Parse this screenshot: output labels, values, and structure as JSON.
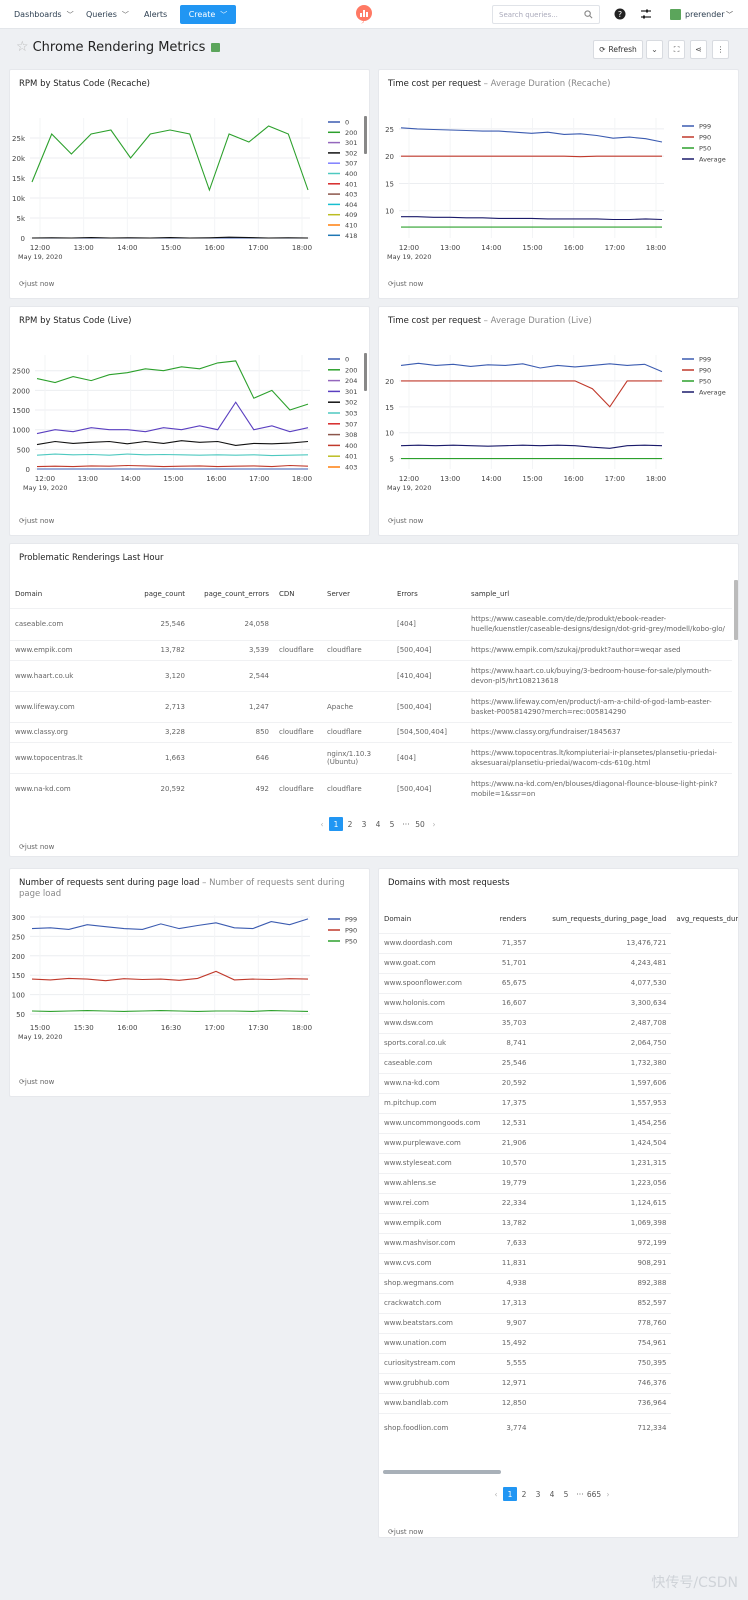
{
  "nav": {
    "dashboards": "Dashboards",
    "queries": "Queries",
    "alerts": "Alerts",
    "create": "Create",
    "search_placeholder": "Search queries...",
    "username": "prerender"
  },
  "page": {
    "title": "Chrome Rendering Metrics",
    "refresh": "Refresh"
  },
  "refreshed": "just now",
  "colors": {
    "primary": "#2196f3",
    "green": "#2ca02c",
    "red": "#c0392b",
    "blue": "#3b5bb0",
    "black": "#111111",
    "purple": "#5a3fc0",
    "teal": "#4ec9c0"
  },
  "cards": {
    "rpm_recache": {
      "title": "RPM by Status Code (Recache)"
    },
    "time_recache": {
      "title": "Time cost per request",
      "subtitle": " – Average Duration (Recache)"
    },
    "rpm_live": {
      "title": "RPM by Status Code (Live)"
    },
    "time_live": {
      "title": "Time cost per request",
      "subtitle": " – Average Duration (Live)"
    },
    "problematic": {
      "title": "Problematic Renderings Last Hour"
    },
    "requests": {
      "title": "Number of requests sent during page load",
      "subtitle": " – Number of requests sent during page load"
    },
    "domains": {
      "title": "Domains with most requests"
    }
  },
  "chart_data": [
    {
      "type": "line",
      "title": "RPM by Status Code (Recache)",
      "date_label": "May 19, 2020",
      "x_ticks": [
        "12:00",
        "13:00",
        "14:00",
        "15:00",
        "16:00",
        "17:00",
        "18:00"
      ],
      "y_ticks": [
        "0",
        "5k",
        "10k",
        "15k",
        "20k",
        "25k"
      ],
      "ylim": [
        0,
        30000
      ],
      "legend": [
        "0",
        "200",
        "301",
        "302",
        "307",
        "400",
        "401",
        "403",
        "404",
        "409",
        "410",
        "418"
      ],
      "series": [
        {
          "name": "200",
          "color": "#2ca02c",
          "values": [
            14000,
            26000,
            21000,
            26000,
            27000,
            20000,
            26000,
            27000,
            26000,
            12000,
            26000,
            24000,
            28000,
            26000,
            12000
          ]
        },
        {
          "name": "0",
          "color": "#3b5bb0",
          "values": [
            0,
            0,
            0,
            0,
            0,
            0,
            0,
            0,
            0,
            0,
            0,
            0,
            0,
            0,
            0
          ]
        },
        {
          "name": "302",
          "color": "#111111",
          "values": [
            0,
            50,
            0,
            100,
            0,
            50,
            0,
            100,
            0,
            50,
            200,
            100,
            0,
            50,
            0
          ]
        }
      ]
    },
    {
      "type": "line",
      "title": "Time cost per request – Average Duration (Recache)",
      "date_label": "May 19, 2020",
      "x_ticks": [
        "12:00",
        "13:00",
        "14:00",
        "15:00",
        "16:00",
        "17:00",
        "18:00"
      ],
      "y_ticks": [
        "10",
        "15",
        "20",
        "25"
      ],
      "ylim": [
        5,
        27
      ],
      "legend": [
        "P99",
        "P90",
        "P50",
        "Average"
      ],
      "series": [
        {
          "name": "P99",
          "color": "#3b5bb0",
          "values": [
            25.2,
            25,
            24.9,
            24.8,
            24.7,
            24.6,
            24.6,
            24.4,
            24.2,
            24.4,
            24,
            24.1,
            23.8,
            23.3,
            23.5,
            23.2,
            22.6
          ]
        },
        {
          "name": "P90",
          "color": "#c0392b",
          "values": [
            20,
            20,
            20,
            20,
            20,
            20,
            20,
            20,
            20,
            20,
            20,
            19.9,
            20,
            20,
            20,
            20,
            20
          ]
        },
        {
          "name": "P50",
          "color": "#2ca02c",
          "values": [
            7,
            7,
            7,
            7,
            7,
            7,
            7,
            7,
            7,
            7,
            7,
            7,
            7,
            7,
            7,
            7,
            7
          ]
        },
        {
          "name": "Average",
          "color": "#1a1a6a",
          "values": [
            8.9,
            8.9,
            8.8,
            8.8,
            8.7,
            8.7,
            8.6,
            8.6,
            8.6,
            8.5,
            8.5,
            8.5,
            8.5,
            8.4,
            8.4,
            8.5,
            8.4
          ]
        }
      ]
    },
    {
      "type": "line",
      "title": "RPM by Status Code (Live)",
      "date_label": "May 19, 2020",
      "x_ticks": [
        "12:00",
        "13:00",
        "14:00",
        "15:00",
        "16:00",
        "17:00",
        "18:00"
      ],
      "y_ticks": [
        "0",
        "500",
        "1000",
        "1500",
        "2000",
        "2500"
      ],
      "ylim": [
        0,
        2900
      ],
      "legend": [
        "0",
        "200",
        "204",
        "301",
        "302",
        "303",
        "307",
        "308",
        "400",
        "401",
        "403"
      ],
      "series": [
        {
          "name": "200",
          "color": "#2ca02c",
          "values": [
            2300,
            2200,
            2350,
            2250,
            2400,
            2450,
            2550,
            2500,
            2600,
            2550,
            2700,
            2750,
            1800,
            2000,
            1500,
            1650
          ]
        },
        {
          "name": "301",
          "color": "#5a3fc0",
          "values": [
            900,
            1000,
            950,
            1050,
            1000,
            1000,
            950,
            1050,
            1000,
            1100,
            1000,
            1700,
            1000,
            1100,
            950,
            1050
          ]
        },
        {
          "name": "302",
          "color": "#111111",
          "values": [
            620,
            700,
            650,
            680,
            700,
            640,
            700,
            650,
            720,
            680,
            700,
            600,
            650,
            640,
            660,
            700
          ]
        },
        {
          "name": "303",
          "color": "#4ec9c0",
          "values": [
            350,
            380,
            360,
            370,
            350,
            380,
            360,
            370,
            360,
            350,
            360,
            350,
            360,
            340,
            350,
            360
          ]
        },
        {
          "name": "400",
          "color": "#c0392b",
          "values": [
            60,
            70,
            60,
            80,
            70,
            90,
            80,
            60,
            70,
            80,
            60,
            70,
            80,
            60,
            90,
            70
          ]
        },
        {
          "name": "0",
          "color": "#3b5bb0",
          "values": [
            0,
            0,
            0,
            0,
            0,
            0,
            0,
            0,
            0,
            0,
            0,
            0,
            0,
            0,
            0,
            0
          ]
        }
      ]
    },
    {
      "type": "line",
      "title": "Time cost per request – Average Duration (Live)",
      "date_label": "May 19, 2020",
      "x_ticks": [
        "12:00",
        "13:00",
        "14:00",
        "15:00",
        "16:00",
        "17:00",
        "18:00"
      ],
      "y_ticks": [
        "5",
        "10",
        "15",
        "20"
      ],
      "ylim": [
        3,
        25
      ],
      "legend": [
        "P99",
        "P90",
        "P50",
        "Average"
      ],
      "series": [
        {
          "name": "P99",
          "color": "#3b5bb0",
          "values": [
            23,
            23.4,
            23,
            23.2,
            22.8,
            23.1,
            23,
            23.3,
            22.5,
            23,
            22.7,
            23,
            23.3,
            23,
            23.2,
            21.8
          ]
        },
        {
          "name": "P90",
          "color": "#c0392b",
          "values": [
            20,
            20,
            20,
            20,
            20,
            20,
            20,
            20,
            20,
            20,
            20,
            18.5,
            15,
            20,
            20,
            20
          ]
        },
        {
          "name": "P50",
          "color": "#2ca02c",
          "values": [
            5,
            5,
            5,
            5,
            5,
            5,
            5,
            5,
            5,
            5,
            5,
            5,
            5,
            5,
            5,
            5
          ]
        },
        {
          "name": "Average",
          "color": "#1a1a6a",
          "values": [
            7.5,
            7.6,
            7.5,
            7.6,
            7.5,
            7.4,
            7.5,
            7.6,
            7.5,
            7.6,
            7.5,
            7.2,
            7,
            7.5,
            7.6,
            7.5
          ]
        }
      ]
    },
    {
      "type": "line",
      "title": "Number of requests sent during page load – Number of requests sent during page load",
      "date_label": "May 19, 2020",
      "x_ticks": [
        "15:00",
        "15:30",
        "16:00",
        "16:30",
        "17:00",
        "17:30",
        "18:00"
      ],
      "y_ticks": [
        "50",
        "100",
        "150",
        "200",
        "250",
        "300"
      ],
      "ylim": [
        40,
        305
      ],
      "legend": [
        "P99",
        "P90",
        "P50"
      ],
      "series": [
        {
          "name": "P99",
          "color": "#3b5bb0",
          "values": [
            270,
            272,
            268,
            280,
            275,
            270,
            268,
            282,
            270,
            278,
            285,
            272,
            270,
            288,
            280,
            295
          ]
        },
        {
          "name": "P90",
          "color": "#c0392b",
          "values": [
            140,
            138,
            142,
            140,
            136,
            141,
            139,
            140,
            137,
            142,
            160,
            138,
            140,
            139,
            141,
            140
          ]
        },
        {
          "name": "P50",
          "color": "#2ca02c",
          "values": [
            58,
            57,
            58,
            59,
            58,
            57,
            58,
            59,
            58,
            57,
            58,
            58,
            57,
            59,
            58,
            57
          ]
        }
      ]
    }
  ],
  "problematic_table": {
    "columns": [
      "Domain",
      "page_count",
      "page_count_errors",
      "CDN",
      "Server",
      "Errors",
      "sample_url"
    ],
    "rows": [
      [
        "caseable.com",
        "25,546",
        "24,058",
        "",
        "",
        "[404]",
        "https://www.caseable.com/de/de/produkt/ebook-reader-huelle/kuenstler/caseable-designs/design/dot-grid-grey/modell/kobo-glo/"
      ],
      [
        "www.empik.com",
        "13,782",
        "3,539",
        "cloudflare",
        "cloudflare",
        "[500,404]",
        "https://www.empik.com/szukaj/produkt?author=weqar ased"
      ],
      [
        "www.haart.co.uk",
        "3,120",
        "2,544",
        "",
        "",
        "[410,404]",
        "https://www.haart.co.uk/buying/3-bedroom-house-for-sale/plymouth-devon-pl5/hrt108213618"
      ],
      [
        "www.lifeway.com",
        "2,713",
        "1,247",
        "",
        "Apache",
        "[500,404]",
        "https://www.lifeway.com/en/product/i-am-a-child-of-god-lamb-easter-basket-P005814290?merch=rec:005814290"
      ],
      [
        "www.classy.org",
        "3,228",
        "850",
        "cloudflare",
        "cloudflare",
        "[504,500,404]",
        "https://www.classy.org/fundraiser/1845637"
      ],
      [
        "www.topocentras.lt",
        "1,663",
        "646",
        "",
        "nginx/1.10.3 (Ubuntu)",
        "[404]",
        "https://www.topocentras.lt/kompiuteriai-ir-plansetes/plansetiu-priedai-aksesuarai/plansetiu-priedai/wacom-cds-610g.html"
      ],
      [
        "www.na-kd.com",
        "20,592",
        "492",
        "cloudflare",
        "cloudflare",
        "[500,404]",
        "https://www.na-kd.com/en/blouses/diagonal-flounce-blouse-light-pink?mobile=1&ssr=on"
      ]
    ],
    "pagination": [
      "1",
      "2",
      "3",
      "4",
      "5",
      "···",
      "50"
    ]
  },
  "domains_table": {
    "columns": [
      "Domain",
      "renders",
      "sum_requests_during_page_load",
      "avg_requests_dur"
    ],
    "rows": [
      [
        "www.doordash.com",
        "71,357",
        "13,476,721"
      ],
      [
        "www.goat.com",
        "51,701",
        "4,243,481"
      ],
      [
        "www.spoonflower.com",
        "65,675",
        "4,077,530"
      ],
      [
        "www.holonis.com",
        "16,607",
        "3,300,634"
      ],
      [
        "www.dsw.com",
        "35,703",
        "2,487,708"
      ],
      [
        "sports.coral.co.uk",
        "8,741",
        "2,064,750"
      ],
      [
        "caseable.com",
        "25,546",
        "1,732,380"
      ],
      [
        "www.na-kd.com",
        "20,592",
        "1,597,606"
      ],
      [
        "m.pitchup.com",
        "17,375",
        "1,557,953"
      ],
      [
        "www.uncommongoods.com",
        "12,531",
        "1,454,256"
      ],
      [
        "www.purplewave.com",
        "21,906",
        "1,424,504"
      ],
      [
        "www.styleseat.com",
        "10,570",
        "1,231,315"
      ],
      [
        "www.ahlens.se",
        "19,779",
        "1,223,056"
      ],
      [
        "www.rei.com",
        "22,334",
        "1,124,615"
      ],
      [
        "www.empik.com",
        "13,782",
        "1,069,398"
      ],
      [
        "www.mashvisor.com",
        "7,633",
        "972,199"
      ],
      [
        "www.cvs.com",
        "11,831",
        "908,291"
      ],
      [
        "shop.wegmans.com",
        "4,938",
        "892,388"
      ],
      [
        "crackwatch.com",
        "17,313",
        "852,597"
      ],
      [
        "www.beatstars.com",
        "9,907",
        "778,760"
      ],
      [
        "www.unation.com",
        "15,492",
        "754,961"
      ],
      [
        "curiositystream.com",
        "5,555",
        "750,395"
      ],
      [
        "www.grubhub.com",
        "12,971",
        "746,376"
      ],
      [
        "www.bandlab.com",
        "12,850",
        "736,964"
      ],
      [
        "shop.foodlion.com",
        "3,774",
        "712,334"
      ]
    ],
    "pagination": [
      "1",
      "2",
      "3",
      "4",
      "5",
      "···",
      "665"
    ]
  },
  "watermark": "快传号/CSDN"
}
